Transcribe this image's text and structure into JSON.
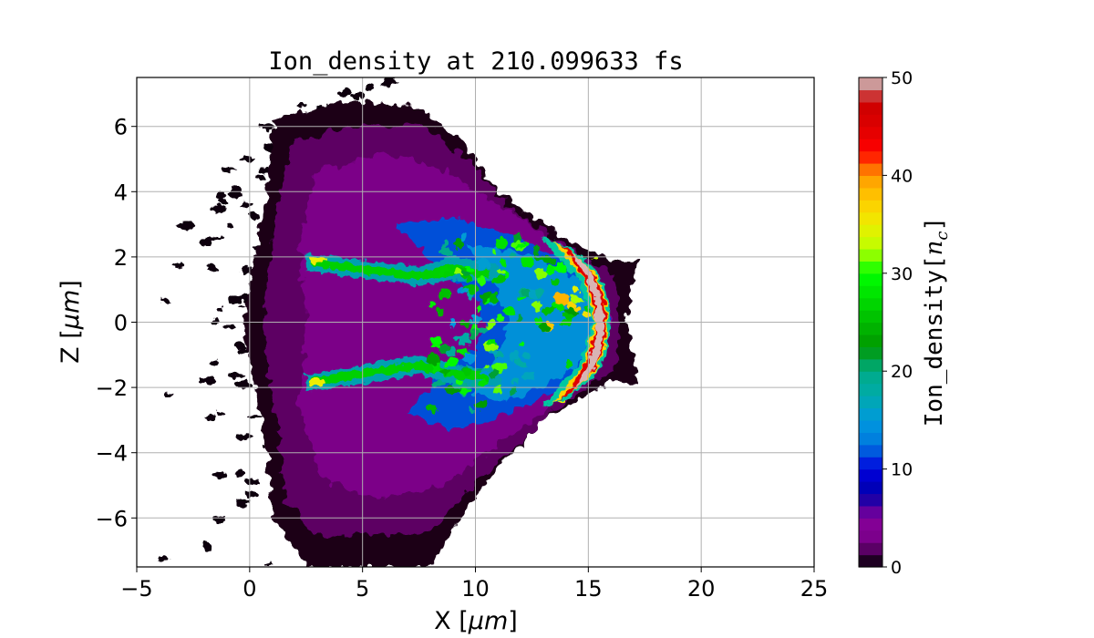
{
  "chart_data": {
    "type": "heatmap",
    "title": "Ion_density at 210.099633 fs",
    "xlabel": "X  [μm]",
    "ylabel": "Z  [μm]",
    "xlim": [
      -5,
      25
    ],
    "ylim": [
      -7.5,
      7.5
    ],
    "x_ticks": [
      -5,
      0,
      5,
      10,
      15,
      20,
      25
    ],
    "y_ticks": [
      -6,
      -4,
      -2,
      0,
      2,
      4,
      6
    ],
    "grid": true,
    "colorbar": {
      "label": "Ion_density[n_c]",
      "range": [
        0,
        50
      ],
      "ticks": [
        0,
        10,
        20,
        30,
        40,
        50
      ],
      "levels": 40,
      "colormap": "nipy_spectral"
    },
    "features": [
      {
        "name": "background plasma envelope",
        "density": 2,
        "x_range": [
          -0.5,
          17
        ],
        "z_range": [
          -7.5,
          7.5
        ]
      },
      {
        "name": "upper filament",
        "density": 25,
        "x_range": [
          2.5,
          12
        ],
        "z_center": 1.8
      },
      {
        "name": "lower filament",
        "density": 25,
        "x_range": [
          2.5,
          12
        ],
        "z_center": -1.8
      },
      {
        "name": "compressed shock front",
        "density": 50,
        "x_center": 15.5,
        "z_range": [
          -2.5,
          2.5
        ]
      },
      {
        "name": "rear tail",
        "density": 2,
        "x_range": [
          16,
          17.3
        ],
        "z_range": [
          -1.9,
          1.9
        ]
      }
    ]
  },
  "labels": {
    "title": "Ion_density at 210.099633 fs",
    "xlabel_main": "X  [",
    "xlabel_unit": "μm",
    "xlabel_end": "]",
    "ylabel_main": "Z  [",
    "ylabel_unit": "μm",
    "ylabel_end": "]",
    "cb_main": "Ion_density[",
    "cb_n": "n",
    "cb_sub": "c",
    "cb_end": "]"
  }
}
